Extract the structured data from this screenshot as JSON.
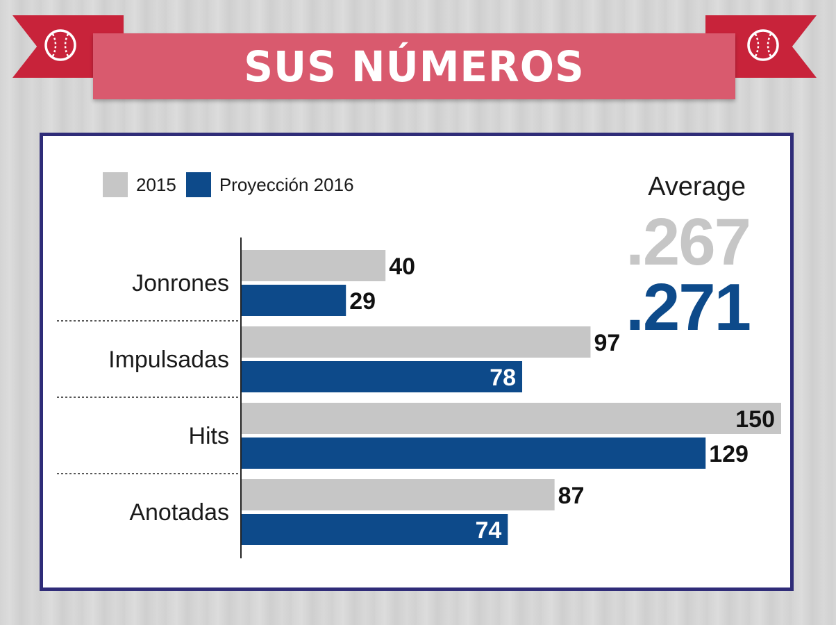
{
  "banner": {
    "title": "SUS NÚMEROS"
  },
  "legend": [
    {
      "label": "2015",
      "color": "#c6c6c6"
    },
    {
      "label": "Proyección 2016",
      "color": "#0d4a8a"
    }
  ],
  "average": {
    "label": "Average",
    "value_2015": ".267",
    "value_2016": ".271"
  },
  "colors": {
    "ribbon": "#c8233a",
    "banner": "#d95a6e",
    "frame": "#2f2c78",
    "series_2015": "#c6c6c6",
    "series_2016": "#0d4a8a"
  },
  "chart_data": {
    "type": "bar",
    "orientation": "horizontal",
    "categories": [
      "Jonrones",
      "Impulsadas",
      "Hits",
      "Anotadas"
    ],
    "series": [
      {
        "name": "2015",
        "values": [
          40,
          97,
          150,
          87
        ]
      },
      {
        "name": "Proyección 2016",
        "values": [
          29,
          78,
          129,
          74
        ]
      }
    ],
    "xlim": [
      0,
      150
    ],
    "grid": false,
    "legend_position": "top-left",
    "data_labels": true
  }
}
